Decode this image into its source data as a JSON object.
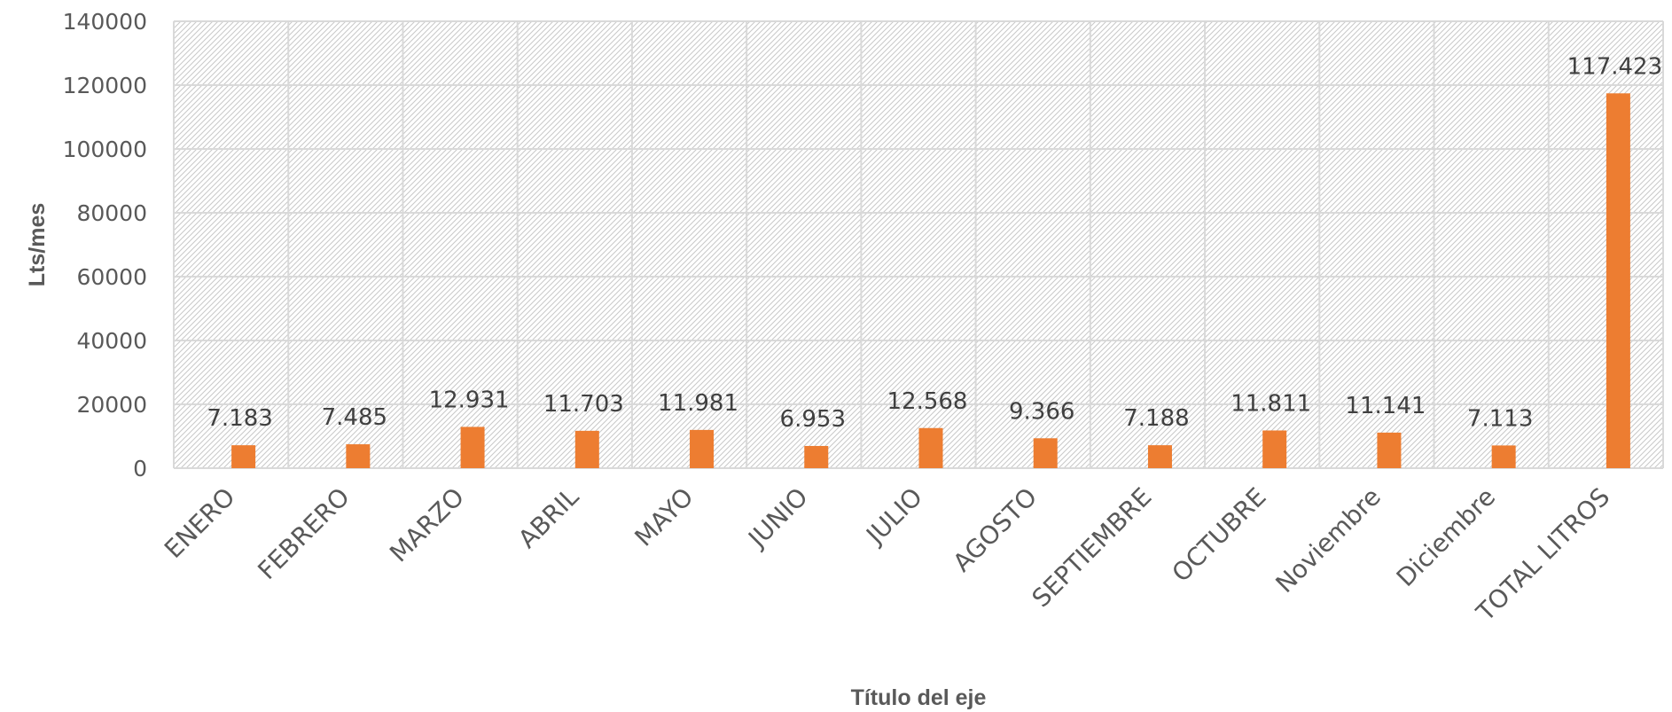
{
  "chart_data": {
    "type": "bar",
    "title": "",
    "xlabel": "Título del eje",
    "ylabel": "Lts/mes",
    "ylim": [
      0,
      140000
    ],
    "yticks": [
      "0",
      "20000",
      "40000",
      "60000",
      "80000",
      "100000",
      "120000",
      "140000"
    ],
    "grid": true,
    "categories": [
      "ENERO",
      "FEBRERO",
      "MARZO",
      "ABRIL",
      "MAYO",
      "JUNIO",
      "JULIO",
      "AGOSTO",
      "SEPTIEMBRE",
      "OCTUBRE",
      "Noviembre",
      "Diciembre",
      "TOTAL LITROS"
    ],
    "values": [
      7183,
      7485,
      12931,
      11703,
      11981,
      6953,
      12568,
      9366,
      7188,
      11811,
      11141,
      7113,
      117423
    ],
    "data_labels": [
      "7.183",
      "7.485",
      "12.931",
      "11.703",
      "11.981",
      "6.953",
      "12.568",
      "9.366",
      "7.188",
      "11.811",
      "11.141",
      "7.113",
      "117.423"
    ],
    "bar_color": "#ED7D31",
    "plot_pattern": "diagonal-hatch"
  }
}
